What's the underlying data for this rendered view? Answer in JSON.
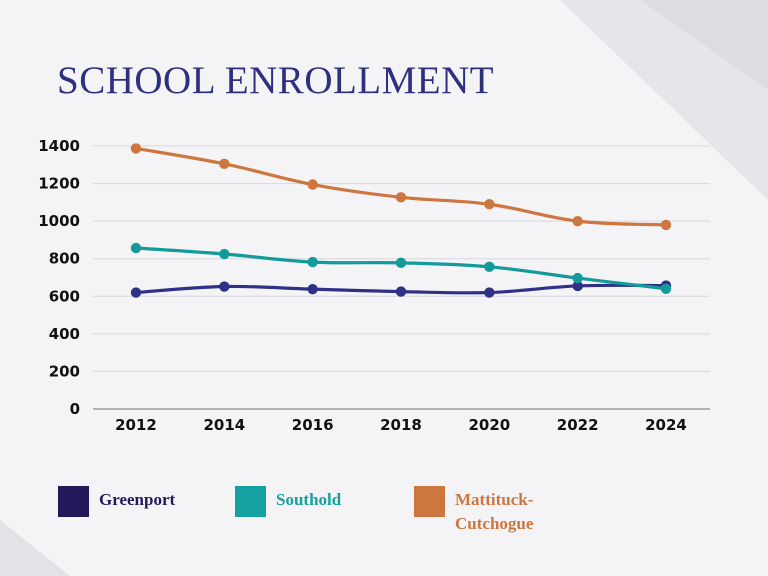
{
  "title": "SCHOOL ENROLLMENT",
  "colors": {
    "title": "#2e2f7e",
    "background": "#f4f4f7",
    "grid": "#d6d6de",
    "axis": "#8a8a93"
  },
  "chart_data": {
    "type": "line",
    "title": "",
    "xlabel": "",
    "ylabel": "",
    "x": [
      2012,
      2014,
      2016,
      2018,
      2020,
      2022,
      2024
    ],
    "ylim": [
      0,
      1400
    ],
    "yticks": [
      0,
      200,
      400,
      600,
      800,
      1000,
      1200,
      1400
    ],
    "grid": true,
    "legend_position": "bottom",
    "series": [
      {
        "name": "Greenport",
        "color": "#2f3187",
        "swatch_color": "#25185a",
        "values": [
          620,
          652,
          638,
          625,
          620,
          655,
          657
        ]
      },
      {
        "name": "Southold",
        "color": "#149a9a",
        "swatch_color": "#15a19f",
        "values": [
          857,
          825,
          782,
          778,
          757,
          697,
          640
        ]
      },
      {
        "name": "Mattituck-\nCutchogue",
        "color": "#cd7640",
        "swatch_color": "#cd7640",
        "values": [
          1387,
          1305,
          1195,
          1127,
          1090,
          1000,
          980
        ]
      }
    ]
  }
}
